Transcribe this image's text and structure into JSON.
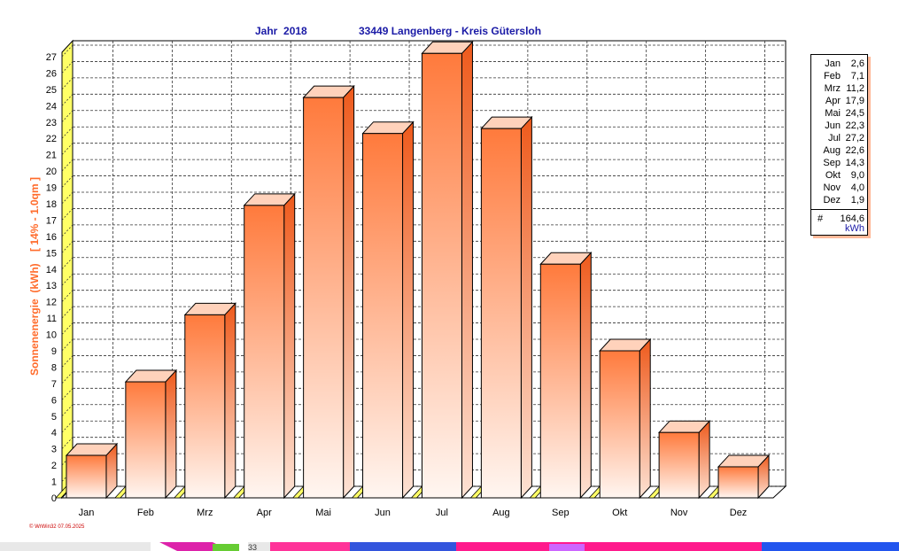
{
  "header": {
    "year_text": "Jahr  2018",
    "location_text": "33449 Langenberg - Kreis Gütersloh"
  },
  "chart_data": {
    "type": "bar",
    "categories": [
      "Jan",
      "Feb",
      "Mrz",
      "Apr",
      "Mai",
      "Jun",
      "Jul",
      "Aug",
      "Sep",
      "Okt",
      "Nov",
      "Dez"
    ],
    "values": [
      2.6,
      7.1,
      11.2,
      17.9,
      24.5,
      22.3,
      27.2,
      22.6,
      14.3,
      9.0,
      4.0,
      1.9
    ],
    "ylabel": "Sonnenenergie  (kWh)    [ 14% - 1.0qm ]",
    "ylim": [
      0,
      27
    ],
    "yticks": [
      0,
      1,
      2,
      3,
      4,
      5,
      6,
      7,
      8,
      9,
      10,
      11,
      12,
      13,
      14,
      15,
      16,
      17,
      18,
      19,
      20,
      21,
      22,
      23,
      24,
      25,
      26,
      27
    ],
    "grid": true,
    "bar_style": "3d gradient",
    "legend_placement": "right"
  },
  "legend": {
    "entries": [
      {
        "month": "Jan",
        "value": "2,6"
      },
      {
        "month": "Feb",
        "value": "7,1"
      },
      {
        "month": "Mrz",
        "value": "11,2"
      },
      {
        "month": "Apr",
        "value": "17,9"
      },
      {
        "month": "Mai",
        "value": "24,5"
      },
      {
        "month": "Jun",
        "value": "22,3"
      },
      {
        "month": "Jul",
        "value": "27,2"
      },
      {
        "month": "Aug",
        "value": "22,6"
      },
      {
        "month": "Sep",
        "value": "14,3"
      },
      {
        "month": "Okt",
        "value": "9,0"
      },
      {
        "month": "Nov",
        "value": "4,0"
      },
      {
        "month": "Dez",
        "value": "1,9"
      }
    ],
    "total_symbol": "#",
    "total_value": "164,6",
    "unit": "kWh"
  },
  "footer": {
    "credit": "© WrWin32  07.05.2025",
    "strip_text": "33"
  },
  "colors": {
    "title": "#1a1aa6",
    "ylabel": "#ff6b2b",
    "bar_top": "#ff7a3c",
    "bar_bottom": "#fff5f0",
    "bar_side": "#f06a2c",
    "bar_cap": "#ffd9c4",
    "wall_yellow": "#ffff66",
    "credit": "#cc0000",
    "grid": "#333333"
  }
}
